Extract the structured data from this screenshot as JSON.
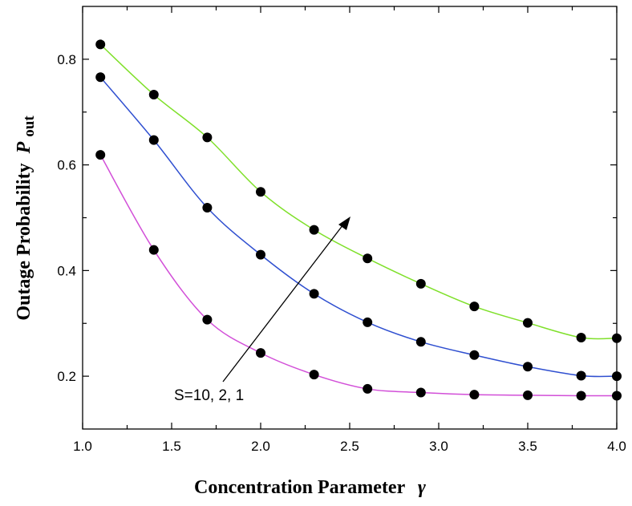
{
  "chart_data": {
    "type": "line",
    "title": "",
    "xlabel": "Concentration Parameter",
    "xlabel_symbol": "γ",
    "ylabel": "Outage Probability",
    "ylabel_symbol": "P",
    "ylabel_subscript": "out",
    "xlim": [
      1.0,
      4.0
    ],
    "ylim": [
      0.1,
      0.9
    ],
    "x_ticks": [
      "1.0",
      "1.5",
      "2.0",
      "2.5",
      "3.0",
      "3.5",
      "4.0"
    ],
    "y_ticks": [
      "0.2",
      "0.4",
      "0.6",
      "0.8"
    ],
    "grid": false,
    "x": [
      1.1,
      1.4,
      1.7,
      2.0,
      2.3,
      2.6,
      2.9,
      3.2,
      3.5,
      3.8,
      4.0
    ],
    "series": [
      {
        "color": "#7fe02a",
        "values": [
          0.828,
          0.733,
          0.652,
          0.549,
          0.477,
          0.423,
          0.375,
          0.332,
          0.301,
          0.273,
          0.272
        ]
      },
      {
        "color": "#2f4fd0",
        "values": [
          0.766,
          0.647,
          0.519,
          0.43,
          0.356,
          0.302,
          0.265,
          0.24,
          0.218,
          0.201,
          0.2
        ]
      },
      {
        "color": "#d24fd8",
        "values": [
          0.619,
          0.439,
          0.307,
          0.244,
          0.203,
          0.176,
          0.169,
          0.165,
          0.164,
          0.163,
          0.163
        ]
      }
    ],
    "annotation": {
      "text": "S=10, 2, 1"
    }
  }
}
